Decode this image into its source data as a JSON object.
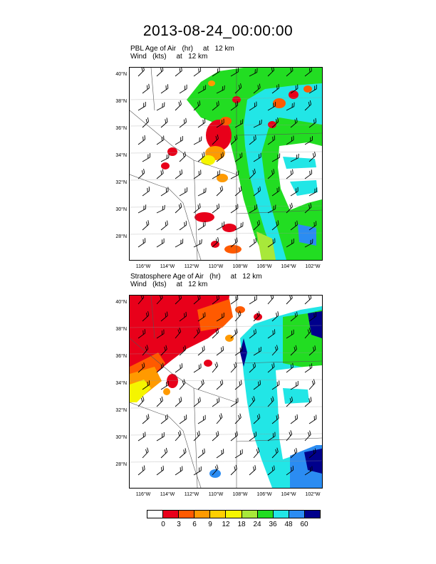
{
  "title": "2013-08-24_00:00:00",
  "panels": [
    {
      "field_line": "PBL Age of Air   (hr)     at   12 km",
      "wind_line": "Wind   (kts)     at   12 km"
    },
    {
      "field_line": "Stratosphere Age of Air   (hr)     at   12 km",
      "wind_line": "Wind   (kts)     at   12 km"
    }
  ],
  "lat_labels": [
    "40°N",
    "38°N",
    "36°N",
    "34°N",
    "32°N",
    "30°N",
    "28°N"
  ],
  "lon_labels": [
    "116°W",
    "114°W",
    "112°W",
    "110°W",
    "108°W",
    "106°W",
    "104°W",
    "102°W"
  ],
  "colorbar": {
    "labels": [
      "0",
      "3",
      "6",
      "9",
      "12",
      "18",
      "24",
      "36",
      "48",
      "60"
    ],
    "colors": [
      "#ffffff",
      "#e8001a",
      "#ff5a00",
      "#ff9a00",
      "#ffcf00",
      "#f5f500",
      "#a8e83a",
      "#22dd22",
      "#22e6e6",
      "#2b8cf2",
      "#00008c"
    ]
  }
}
